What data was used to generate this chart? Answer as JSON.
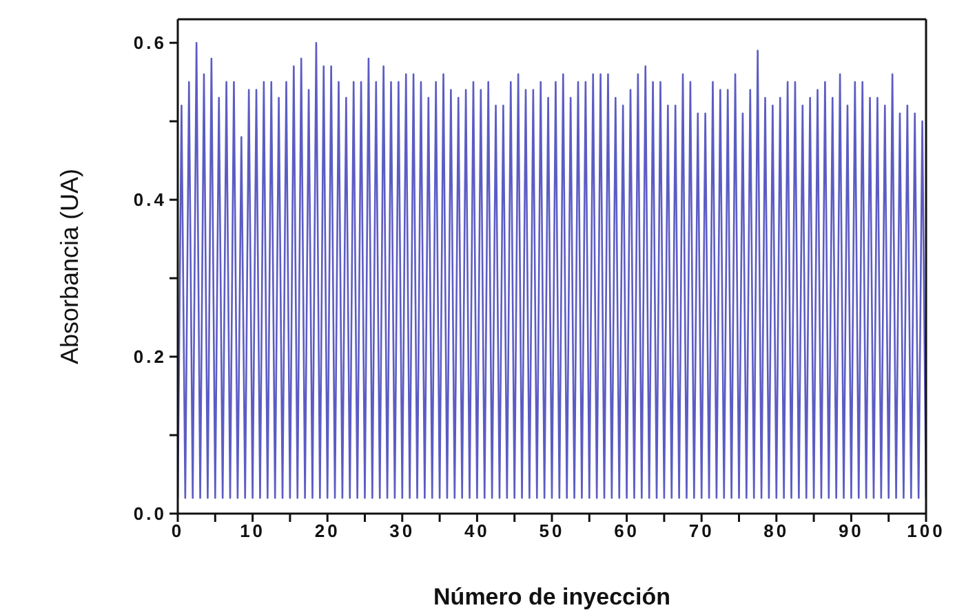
{
  "chart_data": {
    "type": "line",
    "xlabel": "Número de inyección",
    "ylabel": "Absorbancia (UA)",
    "xlim": [
      0,
      100
    ],
    "ylim": [
      0,
      0.63
    ],
    "xticks": [
      0,
      {
        "value": 5,
        "label": null
      },
      10,
      {
        "value": 15,
        "label": null
      },
      20,
      {
        "value": 25,
        "label": null
      },
      30,
      {
        "value": 35,
        "label": null
      },
      40,
      {
        "value": 45,
        "label": null
      },
      50,
      {
        "value": 55,
        "label": null
      },
      60,
      {
        "value": 65,
        "label": null
      },
      70,
      {
        "value": 75,
        "label": null
      },
      80,
      {
        "value": 85,
        "label": null
      },
      90,
      {
        "value": 95,
        "label": null
      },
      100
    ],
    "yticks": [
      {
        "value": 0,
        "label": "0.0"
      },
      {
        "value": 0.1,
        "label": null
      },
      0.2,
      {
        "value": 0.3,
        "label": null
      },
      0.4,
      {
        "value": 0.5,
        "label": null
      },
      0.6
    ],
    "grid": false,
    "legend": false,
    "marker": "none",
    "line_style": "solid",
    "x": [
      0,
      0.5,
      1,
      1.5,
      2,
      2.5,
      3,
      3.5,
      4,
      4.5,
      5,
      5.5,
      6,
      6.5,
      7,
      7.5,
      8,
      8.5,
      9,
      9.5,
      10,
      10.5,
      11,
      11.5,
      12,
      12.5,
      13,
      13.5,
      14,
      14.5,
      15,
      15.5,
      16,
      16.5,
      17,
      17.5,
      18,
      18.5,
      19,
      19.5,
      20,
      20.5,
      21,
      21.5,
      22,
      22.5,
      23,
      23.5,
      24,
      24.5,
      25,
      25.5,
      26,
      26.5,
      27,
      27.5,
      28,
      28.5,
      29,
      29.5,
      30,
      30.5,
      31,
      31.5,
      32,
      32.5,
      33,
      33.5,
      34,
      34.5,
      35,
      35.5,
      36,
      36.5,
      37,
      37.5,
      38,
      38.5,
      39,
      39.5,
      40,
      40.5,
      41,
      41.5,
      42,
      42.5,
      43,
      43.5,
      44,
      44.5,
      45,
      45.5,
      46,
      46.5,
      47,
      47.5,
      48,
      48.5,
      49,
      49.5,
      50,
      50.5,
      51,
      51.5,
      52,
      52.5,
      53,
      53.5,
      54,
      54.5,
      55,
      55.5,
      56,
      56.5,
      57,
      57.5,
      58,
      58.5,
      59,
      59.5,
      60,
      60.5,
      61,
      61.5,
      62,
      62.5,
      63,
      63.5,
      64,
      64.5,
      65,
      65.5,
      66,
      66.5,
      67,
      67.5,
      68,
      68.5,
      69,
      69.5,
      70,
      70.5,
      71,
      71.5,
      72,
      72.5,
      73,
      73.5,
      74,
      74.5,
      75,
      75.5,
      76,
      76.5,
      77,
      77.5,
      78,
      78.5,
      79,
      79.5,
      80,
      80.5,
      81,
      81.5,
      82,
      82.5,
      83,
      83.5,
      84,
      84.5,
      85,
      85.5,
      86,
      86.5,
      87,
      87.5,
      88,
      88.5,
      89,
      89.5,
      90,
      90.5,
      91,
      91.5,
      92,
      92.5,
      93,
      93.5,
      94,
      94.5,
      95,
      95.5,
      96,
      96.5,
      97,
      97.5,
      98,
      98.5,
      99,
      99.5,
      100
    ],
    "series": [
      {
        "color": "#5c5cc4",
        "values": [
          0.02,
          0.52,
          0.02,
          0.55,
          0.02,
          0.6,
          0.02,
          0.56,
          0.02,
          0.58,
          0.02,
          0.53,
          0.02,
          0.55,
          0.02,
          0.55,
          0.02,
          0.48,
          0.02,
          0.54,
          0.02,
          0.54,
          0.02,
          0.55,
          0.02,
          0.55,
          0.02,
          0.53,
          0.02,
          0.55,
          0.02,
          0.57,
          0.02,
          0.58,
          0.02,
          0.54,
          0.02,
          0.6,
          0.02,
          0.57,
          0.02,
          0.57,
          0.02,
          0.55,
          0.02,
          0.53,
          0.02,
          0.55,
          0.02,
          0.55,
          0.02,
          0.58,
          0.02,
          0.55,
          0.02,
          0.57,
          0.02,
          0.55,
          0.02,
          0.55,
          0.02,
          0.56,
          0.02,
          0.56,
          0.02,
          0.55,
          0.02,
          0.53,
          0.02,
          0.55,
          0.02,
          0.56,
          0.02,
          0.54,
          0.02,
          0.53,
          0.02,
          0.54,
          0.02,
          0.55,
          0.02,
          0.54,
          0.02,
          0.55,
          0.02,
          0.52,
          0.02,
          0.52,
          0.02,
          0.55,
          0.02,
          0.56,
          0.02,
          0.54,
          0.02,
          0.54,
          0.02,
          0.55,
          0.02,
          0.53,
          0.02,
          0.55,
          0.02,
          0.56,
          0.02,
          0.53,
          0.02,
          0.55,
          0.02,
          0.55,
          0.02,
          0.56,
          0.02,
          0.56,
          0.02,
          0.56,
          0.02,
          0.53,
          0.02,
          0.52,
          0.02,
          0.54,
          0.02,
          0.56,
          0.02,
          0.57,
          0.02,
          0.55,
          0.02,
          0.55,
          0.02,
          0.52,
          0.02,
          0.52,
          0.02,
          0.56,
          0.02,
          0.55,
          0.02,
          0.51,
          0.02,
          0.51,
          0.02,
          0.55,
          0.02,
          0.54,
          0.02,
          0.54,
          0.02,
          0.56,
          0.02,
          0.51,
          0.02,
          0.54,
          0.02,
          0.59,
          0.02,
          0.53,
          0.02,
          0.52,
          0.02,
          0.53,
          0.02,
          0.55,
          0.02,
          0.55,
          0.02,
          0.52,
          0.02,
          0.53,
          0.02,
          0.54,
          0.02,
          0.55,
          0.02,
          0.53,
          0.02,
          0.56,
          0.02,
          0.52,
          0.02,
          0.55,
          0.02,
          0.55,
          0.02,
          0.53,
          0.02,
          0.53,
          0.02,
          0.52,
          0.02,
          0.56,
          0.02,
          0.51,
          0.02,
          0.52,
          0.02,
          0.51,
          0.02,
          0.5,
          0.02
        ]
      }
    ]
  }
}
